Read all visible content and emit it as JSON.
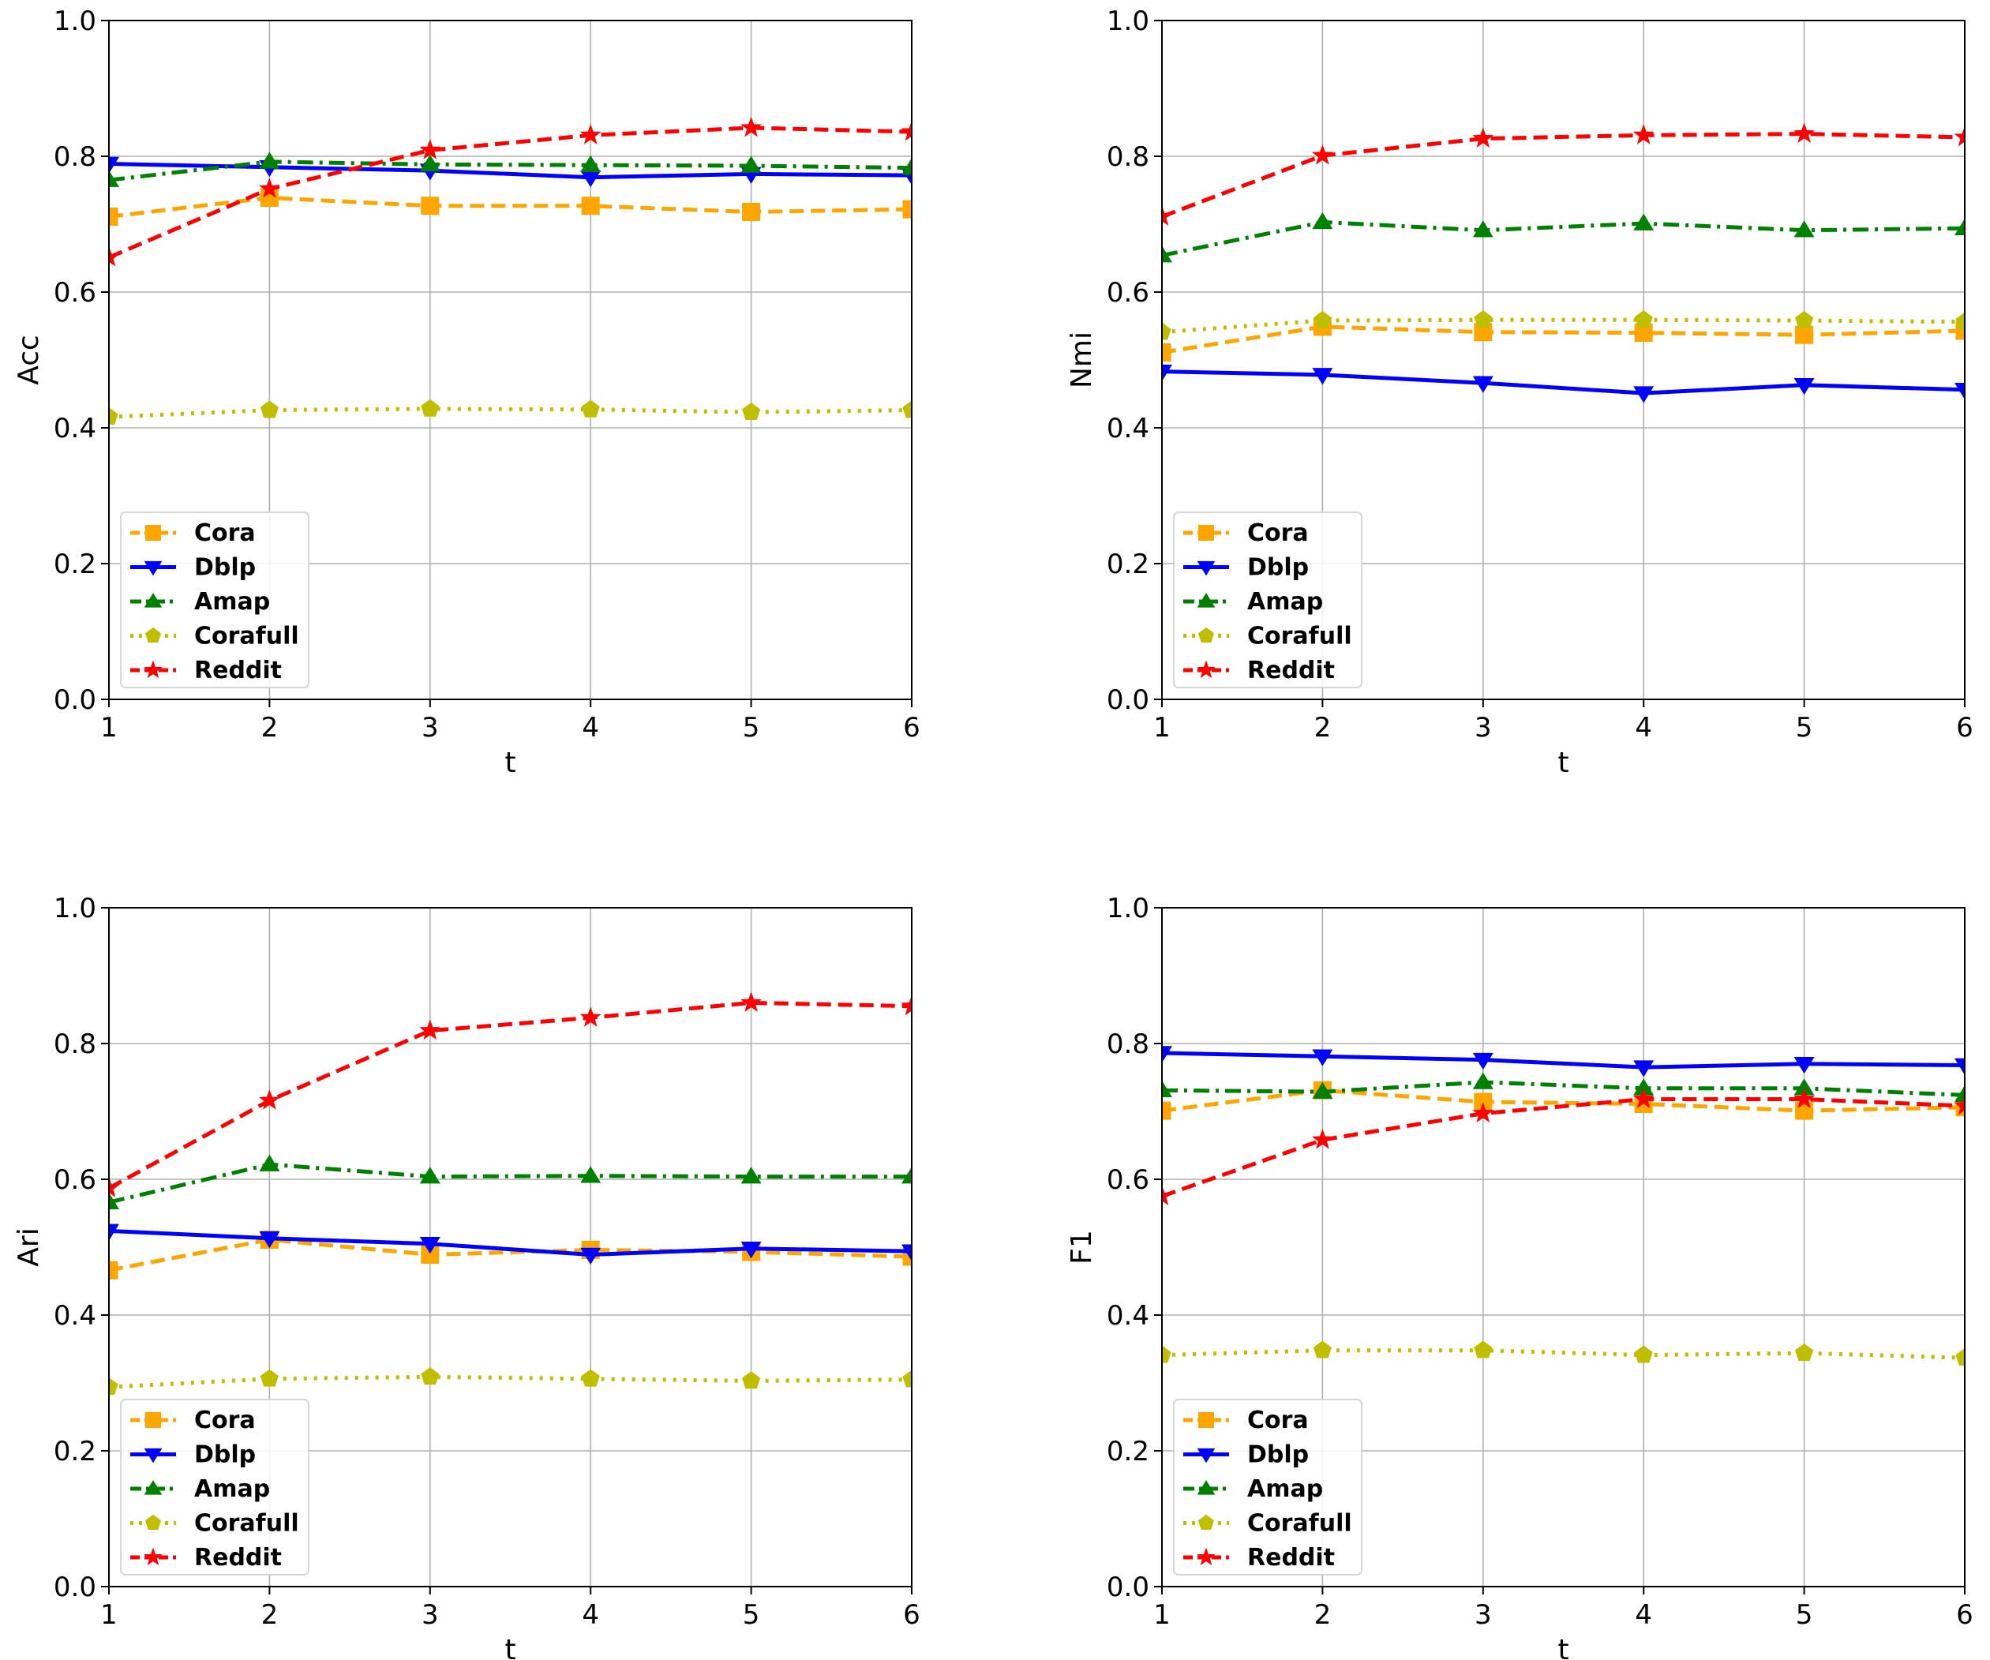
{
  "figure": {
    "description_free": true
  },
  "series_styles": {
    "Cora": {
      "color": "#FFA500",
      "marker": "square",
      "dash": "dashed"
    },
    "Dblp": {
      "color": "#0000FF",
      "marker": "triangle-down",
      "dash": "solid"
    },
    "Amap": {
      "color": "#008000",
      "marker": "triangle-up",
      "dash": "dashdot"
    },
    "Corafull": {
      "color": "#BFBF00",
      "marker": "pentagon",
      "dash": "dotted"
    },
    "Reddit": {
      "color": "#FF0000",
      "marker": "star",
      "dash": "dashed"
    }
  },
  "chart_data": [
    {
      "type": "line",
      "id": "acc",
      "xlabel": "t",
      "ylabel": "Acc",
      "x": [
        1,
        2,
        3,
        4,
        5,
        6
      ],
      "xlim": [
        1,
        6
      ],
      "ylim": [
        0.0,
        1.0
      ],
      "xticks": [
        "1",
        "2",
        "3",
        "4",
        "5",
        "6"
      ],
      "yticks": [
        "0.0",
        "0.2",
        "0.4",
        "0.6",
        "0.8",
        "1.0"
      ],
      "grid": true,
      "legend": "lower-left",
      "series": [
        {
          "name": "Cora",
          "values": [
            0.711,
            0.739,
            0.727,
            0.727,
            0.718,
            0.722
          ]
        },
        {
          "name": "Dblp",
          "values": [
            0.789,
            0.784,
            0.779,
            0.769,
            0.774,
            0.772
          ]
        },
        {
          "name": "Amap",
          "values": [
            0.765,
            0.792,
            0.788,
            0.787,
            0.786,
            0.783
          ]
        },
        {
          "name": "Corafull",
          "values": [
            0.416,
            0.426,
            0.428,
            0.427,
            0.423,
            0.426
          ]
        },
        {
          "name": "Reddit",
          "values": [
            0.651,
            0.752,
            0.809,
            0.831,
            0.842,
            0.836
          ]
        }
      ]
    },
    {
      "type": "line",
      "id": "nmi",
      "xlabel": "t",
      "ylabel": "Nmi",
      "x": [
        1,
        2,
        3,
        4,
        5,
        6
      ],
      "xlim": [
        1,
        6
      ],
      "ylim": [
        0.0,
        1.0
      ],
      "xticks": [
        "1",
        "2",
        "3",
        "4",
        "5",
        "6"
      ],
      "yticks": [
        "0.0",
        "0.2",
        "0.4",
        "0.6",
        "0.8",
        "1.0"
      ],
      "grid": true,
      "legend": "lower-left",
      "series": [
        {
          "name": "Cora",
          "values": [
            0.511,
            0.549,
            0.541,
            0.54,
            0.537,
            0.543
          ]
        },
        {
          "name": "Dblp",
          "values": [
            0.483,
            0.478,
            0.466,
            0.451,
            0.463,
            0.456
          ]
        },
        {
          "name": "Amap",
          "values": [
            0.654,
            0.703,
            0.691,
            0.701,
            0.691,
            0.694
          ]
        },
        {
          "name": "Corafull",
          "values": [
            0.541,
            0.558,
            0.559,
            0.559,
            0.558,
            0.556
          ]
        },
        {
          "name": "Reddit",
          "values": [
            0.711,
            0.801,
            0.826,
            0.831,
            0.833,
            0.828
          ]
        }
      ]
    },
    {
      "type": "line",
      "id": "ari",
      "xlabel": "t",
      "ylabel": "Ari",
      "x": [
        1,
        2,
        3,
        4,
        5,
        6
      ],
      "xlim": [
        1,
        6
      ],
      "ylim": [
        0.0,
        1.0
      ],
      "xticks": [
        "1",
        "2",
        "3",
        "4",
        "5",
        "6"
      ],
      "yticks": [
        "0.0",
        "0.2",
        "0.4",
        "0.6",
        "0.8",
        "1.0"
      ],
      "grid": true,
      "legend": "lower-left",
      "series": [
        {
          "name": "Cora",
          "values": [
            0.466,
            0.511,
            0.489,
            0.496,
            0.493,
            0.486
          ]
        },
        {
          "name": "Dblp",
          "values": [
            0.524,
            0.513,
            0.505,
            0.489,
            0.498,
            0.494
          ]
        },
        {
          "name": "Amap",
          "values": [
            0.566,
            0.622,
            0.604,
            0.605,
            0.604,
            0.604
          ]
        },
        {
          "name": "Corafull",
          "values": [
            0.294,
            0.306,
            0.309,
            0.306,
            0.303,
            0.305
          ]
        },
        {
          "name": "Reddit",
          "values": [
            0.587,
            0.716,
            0.819,
            0.838,
            0.86,
            0.855
          ]
        }
      ]
    },
    {
      "type": "line",
      "id": "f1",
      "xlabel": "t",
      "ylabel": "F1",
      "x": [
        1,
        2,
        3,
        4,
        5,
        6
      ],
      "xlim": [
        1,
        6
      ],
      "ylim": [
        0.0,
        1.0
      ],
      "xticks": [
        "1",
        "2",
        "3",
        "4",
        "5",
        "6"
      ],
      "yticks": [
        "0.0",
        "0.2",
        "0.4",
        "0.6",
        "0.8",
        "1.0"
      ],
      "grid": true,
      "legend": "lower-left",
      "series": [
        {
          "name": "Cora",
          "values": [
            0.701,
            0.731,
            0.714,
            0.711,
            0.701,
            0.706
          ]
        },
        {
          "name": "Dblp",
          "values": [
            0.786,
            0.781,
            0.776,
            0.765,
            0.77,
            0.768
          ]
        },
        {
          "name": "Amap",
          "values": [
            0.731,
            0.729,
            0.743,
            0.734,
            0.734,
            0.724
          ]
        },
        {
          "name": "Corafull",
          "values": [
            0.341,
            0.348,
            0.348,
            0.341,
            0.344,
            0.337
          ]
        },
        {
          "name": "Reddit",
          "values": [
            0.575,
            0.658,
            0.697,
            0.718,
            0.718,
            0.708
          ]
        }
      ]
    }
  ]
}
